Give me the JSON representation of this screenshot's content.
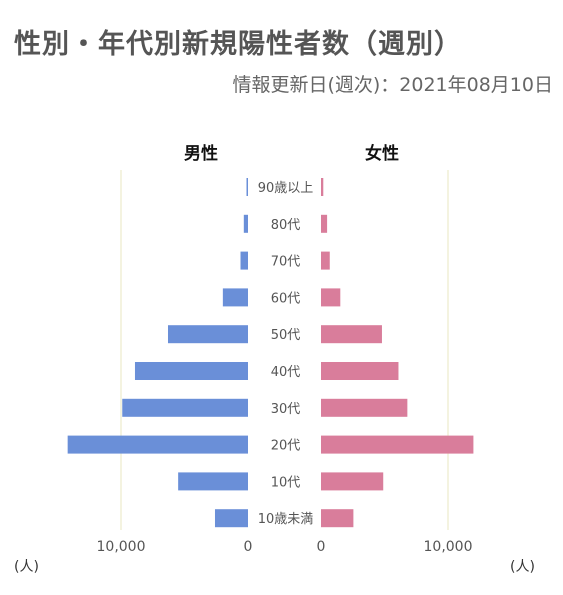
{
  "title": "性別・年代別新規陽性者数（週別）",
  "updated": "情報更新日(週次)：2021年08月10日",
  "chart_data": {
    "type": "bar",
    "orientation": "horizontal-pyramid",
    "categories": [
      "90歳以上",
      "80代",
      "70代",
      "60代",
      "50代",
      "40代",
      "30代",
      "20代",
      "10代",
      "10歳未満"
    ],
    "series": [
      {
        "name": "男性",
        "color": "#6a8fd8",
        "values": [
          30,
          330,
          590,
          1980,
          6300,
          8900,
          9900,
          14200,
          5500,
          2600
        ]
      },
      {
        "name": "女性",
        "color": "#d97d9b",
        "values": [
          180,
          480,
          690,
          1520,
          4800,
          6100,
          6800,
          12000,
          4900,
          2550
        ]
      }
    ],
    "xlim": [
      0,
      14500
    ],
    "male_ticks": [
      "10,000",
      "0"
    ],
    "female_ticks": [
      "0",
      "10,000"
    ],
    "unit_left": "(人)",
    "unit_right": "(人)"
  }
}
